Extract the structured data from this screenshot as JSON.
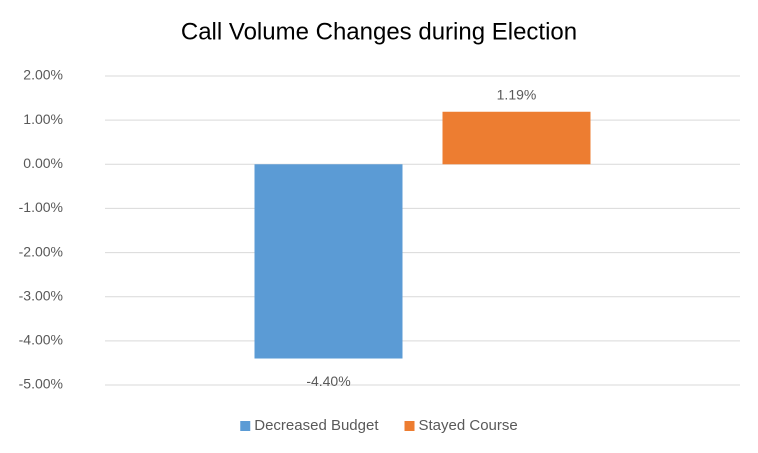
{
  "chart_data": {
    "type": "bar",
    "title": "Call Volume Changes during Election",
    "categories": [
      null
    ],
    "series": [
      {
        "name": "Decreased Budget",
        "color": "#5b9bd5",
        "values": [
          -4.4
        ],
        "value_labels": [
          "-4.40%"
        ]
      },
      {
        "name": "Stayed Course",
        "color": "#ed7d31",
        "values": [
          1.19
        ],
        "value_labels": [
          "1.19%"
        ]
      }
    ],
    "ylim": [
      -5,
      2
    ],
    "yticks": [
      {
        "value": -5,
        "label": "-5.00%"
      },
      {
        "value": -4,
        "label": "-4.00%"
      },
      {
        "value": -3,
        "label": "-3.00%"
      },
      {
        "value": -2,
        "label": "-2.00%"
      },
      {
        "value": -1,
        "label": "-1.00%"
      },
      {
        "value": 0,
        "label": "0.00%"
      },
      {
        "value": 1,
        "label": "1.00%"
      },
      {
        "value": 2,
        "label": "2.00%"
      }
    ],
    "grid": true,
    "legend": "bottom"
  }
}
